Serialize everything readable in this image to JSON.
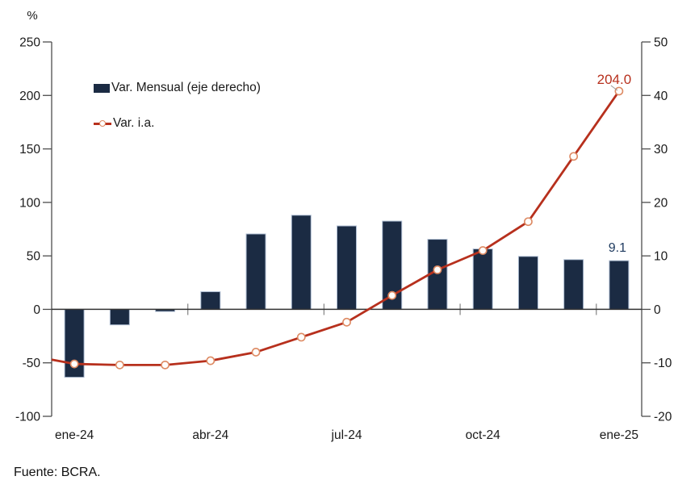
{
  "page": {
    "source": "Fuente: BCRA."
  },
  "colors": {
    "bar_fill": "#1b2b43",
    "bar_border": "#aebdd2",
    "line": "#b7301d",
    "marker_fill": "#fffdfb",
    "marker_stroke": "#dd8a63",
    "axis_line": "#4d4d4d",
    "zero_line": "#333333",
    "quarter_tick": "#8c8c8c",
    "text": "#1a1a1a",
    "annotation_line_label": "#b7301d",
    "annotation_bar_label": "#1e3a5f",
    "leader_line": "#999999"
  },
  "chart_data": {
    "type": "combo",
    "title": "",
    "categories": [
      "ene-24",
      "feb-24",
      "mar-24",
      "abr-24",
      "may-24",
      "jun-24",
      "jul-24",
      "ago-24",
      "sep-24",
      "oct-24",
      "nov-24",
      "dic-24",
      "ene-25"
    ],
    "series": [
      {
        "name": "Var. Mensual (eje derecho)",
        "type": "bar",
        "axis": "right",
        "values": [
          -12.7,
          -2.9,
          -0.4,
          3.3,
          14.1,
          17.6,
          15.6,
          16.5,
          13.1,
          11.3,
          9.9,
          9.3,
          9.1
        ]
      },
      {
        "name": "Var. i.a.",
        "type": "line",
        "axis": "left",
        "edge_start_value": -47,
        "values": [
          -51,
          -52,
          -52,
          -48,
          -40,
          -26,
          -12,
          13,
          37,
          55,
          82,
          143,
          204
        ]
      }
    ],
    "left_axis": {
      "label": "%",
      "min": -100,
      "max": 250,
      "ticks": [
        250,
        200,
        150,
        100,
        50,
        0,
        -50,
        -100
      ]
    },
    "right_axis": {
      "min": -20,
      "max": 50,
      "ticks": [
        50,
        40,
        30,
        20,
        10,
        0,
        -10,
        -20
      ]
    },
    "x_axis": {
      "labels_shown": [
        "ene-24",
        "abr-24",
        "jul-24",
        "oct-24",
        "ene-25"
      ],
      "label_indices": [
        0,
        3,
        6,
        9,
        12
      ]
    },
    "annotations": [
      {
        "text": "204.0",
        "target_series": "Var. i.a.",
        "target_point": "ene-25"
      },
      {
        "text": "9.1",
        "target_series": "Var. Mensual (eje derecho)",
        "target_point": "ene-25"
      }
    ],
    "grid": false,
    "legend_position": "top-left-inside"
  }
}
